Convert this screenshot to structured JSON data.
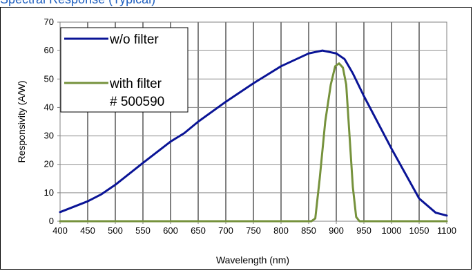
{
  "heading_fragment": "Spectral Response (Typical)",
  "chart_data": {
    "type": "line",
    "xlabel": "Wavelength (nm)",
    "ylabel": "Responsivity (A/W)",
    "xlim": [
      400,
      1100
    ],
    "ylim": [
      0,
      70
    ],
    "xticks": [
      400,
      450,
      500,
      550,
      600,
      650,
      700,
      750,
      800,
      850,
      900,
      950,
      1000,
      1050,
      1100
    ],
    "yticks": [
      0,
      10,
      20,
      30,
      40,
      50,
      60,
      70
    ],
    "grid": true,
    "legend_position": "top-left",
    "series": [
      {
        "name": "w/o filter",
        "color": "#0a1496",
        "x": [
          400,
          450,
          475,
          500,
          550,
          600,
          625,
          650,
          700,
          750,
          800,
          850,
          875,
          900,
          915,
          930,
          950,
          1000,
          1050,
          1080,
          1100
        ],
        "y": [
          3.2,
          7.0,
          9.5,
          12.8,
          20.5,
          28.0,
          31.0,
          35.0,
          42.0,
          48.5,
          54.5,
          59.0,
          60.0,
          59.0,
          57.0,
          52.0,
          44.0,
          25.5,
          8.0,
          3.0,
          2.0
        ]
      },
      {
        "name": "with filter",
        "sublabel": "# 500590",
        "color": "#76923c",
        "x": [
          400,
          855,
          862,
          870,
          880,
          890,
          898,
          905,
          912,
          918,
          924,
          930,
          936,
          942,
          1100
        ],
        "y": [
          0,
          0,
          1,
          15,
          35,
          48,
          54.5,
          55.5,
          54,
          48,
          30,
          12,
          1.5,
          0,
          0
        ]
      }
    ]
  }
}
